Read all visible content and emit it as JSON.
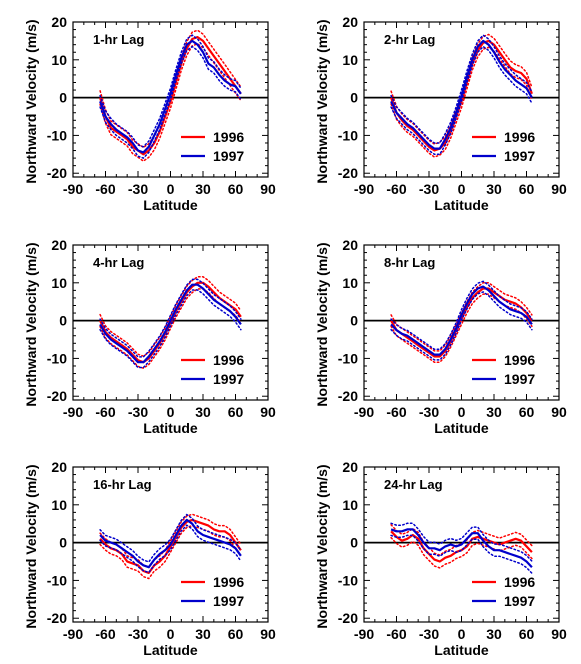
{
  "chart_data": [
    {
      "type": "line",
      "title": "1-hr Lag",
      "xlabel": "Latitude",
      "ylabel": "Northward Velocity (m/s)",
      "xlim": [
        -90,
        90
      ],
      "ylim": [
        -21,
        20
      ],
      "xticks": [
        -90,
        -60,
        -30,
        0,
        30,
        60,
        90
      ],
      "yticks": [
        -20,
        -10,
        0,
        10,
        20
      ],
      "zero_line": true,
      "legend_position": "bottom-right",
      "series": [
        {
          "name": "1996",
          "color": "#ff0000",
          "x": [
            -65,
            -60,
            -55,
            -50,
            -45,
            -40,
            -35,
            -30,
            -25,
            -20,
            -15,
            -10,
            -5,
            0,
            5,
            10,
            15,
            20,
            25,
            30,
            35,
            40,
            45,
            50,
            55,
            60,
            65
          ],
          "values": [
            0,
            -5,
            -8,
            -9,
            -10,
            -11,
            -13,
            -14,
            -15,
            -14,
            -12,
            -9,
            -5,
            -1,
            4,
            9,
            13,
            15.5,
            16,
            15,
            13,
            11,
            9,
            7,
            5,
            3,
            1
          ],
          "error": 1.8
        },
        {
          "name": "1997",
          "color": "#0000cc",
          "x": [
            -65,
            -60,
            -55,
            -50,
            -45,
            -40,
            -35,
            -30,
            -25,
            -20,
            -15,
            -10,
            -5,
            0,
            5,
            10,
            15,
            20,
            25,
            30,
            35,
            40,
            45,
            50,
            55,
            60,
            65
          ],
          "values": [
            -1,
            -5,
            -7,
            -8.5,
            -9.5,
            -10.5,
            -12,
            -14,
            -14.5,
            -13,
            -10,
            -7,
            -3,
            1,
            6,
            10.5,
            14,
            15,
            14,
            12,
            9,
            8,
            6,
            4.5,
            3.5,
            3,
            1
          ],
          "error": 1.5
        }
      ]
    },
    {
      "type": "line",
      "title": "2-hr Lag",
      "xlabel": "Latitude",
      "ylabel": "Northward Velocity (m/s)",
      "xlim": [
        -90,
        90
      ],
      "ylim": [
        -21,
        20
      ],
      "xticks": [
        -90,
        -60,
        -30,
        0,
        30,
        60,
        90
      ],
      "yticks": [
        -20,
        -10,
        0,
        10,
        20
      ],
      "zero_line": true,
      "legend_position": "bottom-right",
      "series": [
        {
          "name": "1996",
          "color": "#ff0000",
          "x": [
            -65,
            -60,
            -55,
            -50,
            -45,
            -40,
            -35,
            -30,
            -25,
            -20,
            -15,
            -10,
            -5,
            0,
            5,
            10,
            15,
            20,
            25,
            30,
            35,
            40,
            45,
            50,
            55,
            60,
            65
          ],
          "values": [
            0,
            -4,
            -6,
            -7.5,
            -8.5,
            -10,
            -11.5,
            -13,
            -14,
            -13.5,
            -12,
            -9,
            -5,
            -1,
            4,
            9,
            12.5,
            14.5,
            15,
            14,
            12,
            10,
            8,
            7,
            6.5,
            5,
            1
          ],
          "error": 1.7
        },
        {
          "name": "1997",
          "color": "#0000cc",
          "x": [
            -65,
            -60,
            -55,
            -50,
            -45,
            -40,
            -35,
            -30,
            -25,
            -20,
            -15,
            -10,
            -5,
            0,
            5,
            10,
            15,
            20,
            25,
            30,
            35,
            40,
            45,
            50,
            55,
            60,
            65
          ],
          "values": [
            -1,
            -4,
            -5.5,
            -7,
            -8,
            -9.5,
            -11,
            -12.5,
            -13.5,
            -13.5,
            -11,
            -8,
            -4,
            0.5,
            5.5,
            10,
            13.5,
            15,
            14,
            12,
            9.5,
            7.5,
            6,
            4.5,
            3.5,
            2.5,
            0
          ],
          "error": 1.5
        }
      ]
    },
    {
      "type": "line",
      "title": "4-hr Lag",
      "xlabel": "Latitude",
      "ylabel": "Northward Velocity (m/s)",
      "xlim": [
        -90,
        90
      ],
      "ylim": [
        -21,
        20
      ],
      "xticks": [
        -90,
        -60,
        -30,
        0,
        30,
        60,
        90
      ],
      "yticks": [
        -20,
        -10,
        0,
        10,
        20
      ],
      "zero_line": true,
      "legend_position": "bottom-right",
      "series": [
        {
          "name": "1996",
          "color": "#ff0000",
          "x": [
            -65,
            -60,
            -55,
            -50,
            -45,
            -40,
            -35,
            -30,
            -25,
            -20,
            -15,
            -10,
            -5,
            0,
            5,
            10,
            15,
            20,
            25,
            30,
            35,
            40,
            45,
            50,
            55,
            60,
            65
          ],
          "values": [
            0,
            -3,
            -4.5,
            -5.5,
            -6.5,
            -7.5,
            -9,
            -10.5,
            -11,
            -10,
            -8,
            -6,
            -3.5,
            -0.5,
            2.5,
            5,
            7.5,
            9,
            10,
            10,
            9,
            7.5,
            6,
            5,
            4,
            3,
            1
          ],
          "error": 1.6
        },
        {
          "name": "1997",
          "color": "#0000cc",
          "x": [
            -65,
            -60,
            -55,
            -50,
            -45,
            -40,
            -35,
            -30,
            -25,
            -20,
            -15,
            -10,
            -5,
            0,
            5,
            10,
            15,
            20,
            25,
            30,
            35,
            40,
            45,
            50,
            55,
            60,
            65
          ],
          "values": [
            -1,
            -3.5,
            -5,
            -6,
            -7,
            -8,
            -9.5,
            -11,
            -11,
            -9.5,
            -7.5,
            -5.5,
            -3,
            0,
            3,
            5.5,
            8,
            9.5,
            9.5,
            8.5,
            7,
            5.5,
            4.5,
            3.5,
            2.5,
            1,
            -1
          ],
          "error": 1.4
        }
      ]
    },
    {
      "type": "line",
      "title": "8-hr Lag",
      "xlabel": "Latitude",
      "ylabel": "Northward Velocity (m/s)",
      "xlim": [
        -90,
        90
      ],
      "ylim": [
        -21,
        20
      ],
      "xticks": [
        -90,
        -60,
        -30,
        0,
        30,
        60,
        90
      ],
      "yticks": [
        -20,
        -10,
        0,
        10,
        20
      ],
      "zero_line": true,
      "legend_position": "bottom-right",
      "series": [
        {
          "name": "1996",
          "color": "#ff0000",
          "x": [
            -65,
            -60,
            -55,
            -50,
            -45,
            -40,
            -35,
            -30,
            -25,
            -20,
            -15,
            -10,
            -5,
            0,
            5,
            10,
            15,
            20,
            25,
            30,
            35,
            40,
            45,
            50,
            55,
            60,
            65
          ],
          "values": [
            0,
            -2.5,
            -3.5,
            -4.5,
            -5.5,
            -6.5,
            -7.5,
            -8.5,
            -9.5,
            -9.5,
            -8,
            -5.5,
            -2.5,
            0.5,
            3.5,
            6,
            7.5,
            8.5,
            8.5,
            7.5,
            6.5,
            5.5,
            5,
            4.5,
            3.5,
            2,
            0
          ],
          "error": 1.5
        },
        {
          "name": "1997",
          "color": "#0000cc",
          "x": [
            -65,
            -60,
            -55,
            -50,
            -45,
            -40,
            -35,
            -30,
            -25,
            -20,
            -15,
            -10,
            -5,
            0,
            5,
            10,
            15,
            20,
            25,
            30,
            35,
            40,
            45,
            50,
            55,
            60,
            65
          ],
          "values": [
            -1,
            -2.5,
            -3.5,
            -4,
            -5,
            -6,
            -7,
            -8,
            -9,
            -9,
            -7.5,
            -5,
            -2,
            1.5,
            4.5,
            7,
            8.5,
            9,
            8,
            6.5,
            5,
            4,
            3,
            2.5,
            2,
            1,
            -1
          ],
          "error": 1.4
        }
      ]
    },
    {
      "type": "line",
      "title": "16-hr Lag",
      "xlabel": "Latitude",
      "ylabel": "Northward Velocity (m/s)",
      "xlim": [
        -90,
        90
      ],
      "ylim": [
        -21,
        20
      ],
      "xticks": [
        -90,
        -60,
        -30,
        0,
        30,
        60,
        90
      ],
      "yticks": [
        -20,
        -10,
        0,
        10,
        20
      ],
      "zero_line": true,
      "legend_position": "bottom-right",
      "series": [
        {
          "name": "1996",
          "color": "#ff0000",
          "x": [
            -65,
            -60,
            -55,
            -50,
            -45,
            -40,
            -35,
            -30,
            -25,
            -20,
            -15,
            -10,
            -5,
            0,
            5,
            10,
            15,
            20,
            25,
            30,
            35,
            40,
            45,
            50,
            55,
            60,
            65
          ],
          "values": [
            1,
            -0.5,
            -1.5,
            -2,
            -3,
            -5,
            -5.5,
            -6,
            -7.5,
            -8,
            -6,
            -5,
            -3.5,
            -1,
            1.5,
            4,
            5.5,
            6,
            5.5,
            5,
            4.5,
            3.5,
            3,
            3,
            2,
            0,
            -2
          ],
          "error": 1.5
        },
        {
          "name": "1997",
          "color": "#0000cc",
          "x": [
            -65,
            -60,
            -55,
            -50,
            -45,
            -40,
            -35,
            -30,
            -25,
            -20,
            -15,
            -10,
            -5,
            0,
            5,
            10,
            15,
            20,
            25,
            30,
            35,
            40,
            45,
            50,
            55,
            60,
            65
          ],
          "values": [
            2,
            0.5,
            0,
            -0.5,
            -1.5,
            -2.5,
            -3.5,
            -5,
            -6,
            -6.5,
            -4.5,
            -3,
            -2,
            -0.5,
            2,
            4.5,
            6,
            5,
            3,
            2,
            1.5,
            1,
            0.5,
            0,
            -0.5,
            -1.5,
            -3.5
          ],
          "error": 1.4
        }
      ]
    },
    {
      "type": "line",
      "title": "24-hr Lag",
      "xlabel": "Latitude",
      "ylabel": "Northward Velocity (m/s)",
      "xlim": [
        -90,
        90
      ],
      "ylim": [
        -21,
        20
      ],
      "xticks": [
        -90,
        -60,
        -30,
        0,
        30,
        60,
        90
      ],
      "yticks": [
        -20,
        -10,
        0,
        10,
        20
      ],
      "zero_line": true,
      "legend_position": "bottom-right",
      "series": [
        {
          "name": "1996",
          "color": "#ff0000",
          "x": [
            -65,
            -60,
            -55,
            -50,
            -45,
            -40,
            -35,
            -30,
            -25,
            -20,
            -15,
            -10,
            -5,
            0,
            5,
            10,
            15,
            20,
            25,
            30,
            35,
            40,
            45,
            50,
            55,
            60,
            65
          ],
          "values": [
            3,
            1.5,
            0.5,
            1,
            2,
            1,
            -1.5,
            -3,
            -4.5,
            -5,
            -4,
            -3.5,
            -2.5,
            -2,
            -1,
            1,
            1.5,
            1,
            0.5,
            0,
            -0.5,
            0,
            0.5,
            1,
            0.5,
            -1,
            -2.5
          ],
          "error": 1.7
        },
        {
          "name": "1997",
          "color": "#0000cc",
          "x": [
            -65,
            -60,
            -55,
            -50,
            -45,
            -40,
            -35,
            -30,
            -25,
            -20,
            -15,
            -10,
            -5,
            0,
            5,
            10,
            15,
            20,
            25,
            30,
            35,
            40,
            45,
            50,
            55,
            60,
            65
          ],
          "values": [
            3.5,
            3,
            3,
            3.5,
            3.5,
            2,
            0,
            -1.5,
            -1.5,
            -2,
            -1,
            -0.5,
            -1,
            -0.5,
            1,
            2.5,
            2.5,
            0.5,
            -1,
            -2,
            -2,
            -2.5,
            -3,
            -3.5,
            -4,
            -5,
            -6.5
          ],
          "error": 1.6
        }
      ]
    }
  ]
}
